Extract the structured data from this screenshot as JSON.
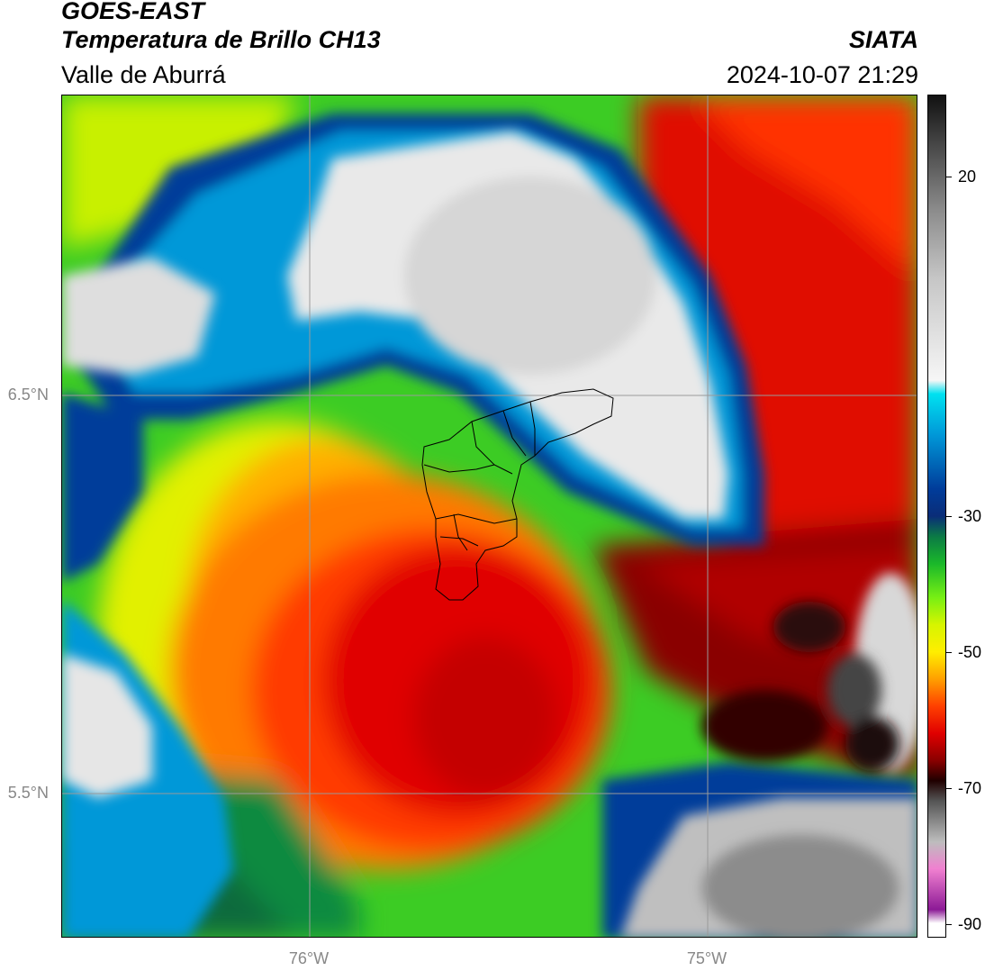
{
  "header": {
    "satellite": "GOES-EAST",
    "product": "Temperatura de Brillo CH13",
    "organization": "SIATA",
    "region": "Valle de Aburrá",
    "datetime": "2024-10-07 21:29"
  },
  "axes": {
    "lat_labels": [
      {
        "label": "6.5°N",
        "value": 6.5
      },
      {
        "label": "5.5°N",
        "value": 5.5
      }
    ],
    "lon_labels": [
      {
        "label": "76°W",
        "value": -76.0
      },
      {
        "label": "75°W",
        "value": -75.0
      }
    ]
  },
  "colorbar": {
    "units_range": [
      -92,
      32
    ],
    "ticks": [
      {
        "label": "20",
        "value": 20
      },
      {
        "label": "-30",
        "value": -30
      },
      {
        "label": "-50",
        "value": -50
      },
      {
        "label": "-70",
        "value": -70
      },
      {
        "label": "-90",
        "value": -90
      }
    ],
    "stops": [
      {
        "value": 32,
        "color": "#111111"
      },
      {
        "value": 25,
        "color": "#454545"
      },
      {
        "value": 15,
        "color": "#8c8c8c"
      },
      {
        "value": 5,
        "color": "#c6c6c6"
      },
      {
        "value": -10,
        "color": "#f6f6f6"
      },
      {
        "value": -12,
        "color": "#00e1f0"
      },
      {
        "value": -18,
        "color": "#0098d8"
      },
      {
        "value": -26,
        "color": "#003c9a"
      },
      {
        "value": -30,
        "color": "#0a2d78"
      },
      {
        "value": -33,
        "color": "#0b7a45"
      },
      {
        "value": -37,
        "color": "#1ab82a"
      },
      {
        "value": -42,
        "color": "#77ef14"
      },
      {
        "value": -46,
        "color": "#d6f500"
      },
      {
        "value": -50,
        "color": "#ffee00"
      },
      {
        "value": -54,
        "color": "#ffa000"
      },
      {
        "value": -58,
        "color": "#ff4000"
      },
      {
        "value": -62,
        "color": "#e00000"
      },
      {
        "value": -66,
        "color": "#8a0000"
      },
      {
        "value": -69,
        "color": "#200000"
      },
      {
        "value": -72,
        "color": "#555555"
      },
      {
        "value": -78,
        "color": "#bdbdbd"
      },
      {
        "value": -82,
        "color": "#f080d0"
      },
      {
        "value": -88,
        "color": "#8c1a96"
      },
      {
        "value": -90,
        "color": "#ffffff"
      }
    ]
  },
  "colors": {
    "cold_cloud_core": "#d00000",
    "overshooting_top": "#1a0000",
    "clear_sky": "#e8e8e8",
    "boundary_line": "#000000",
    "graticule": "#9a9a9a"
  }
}
